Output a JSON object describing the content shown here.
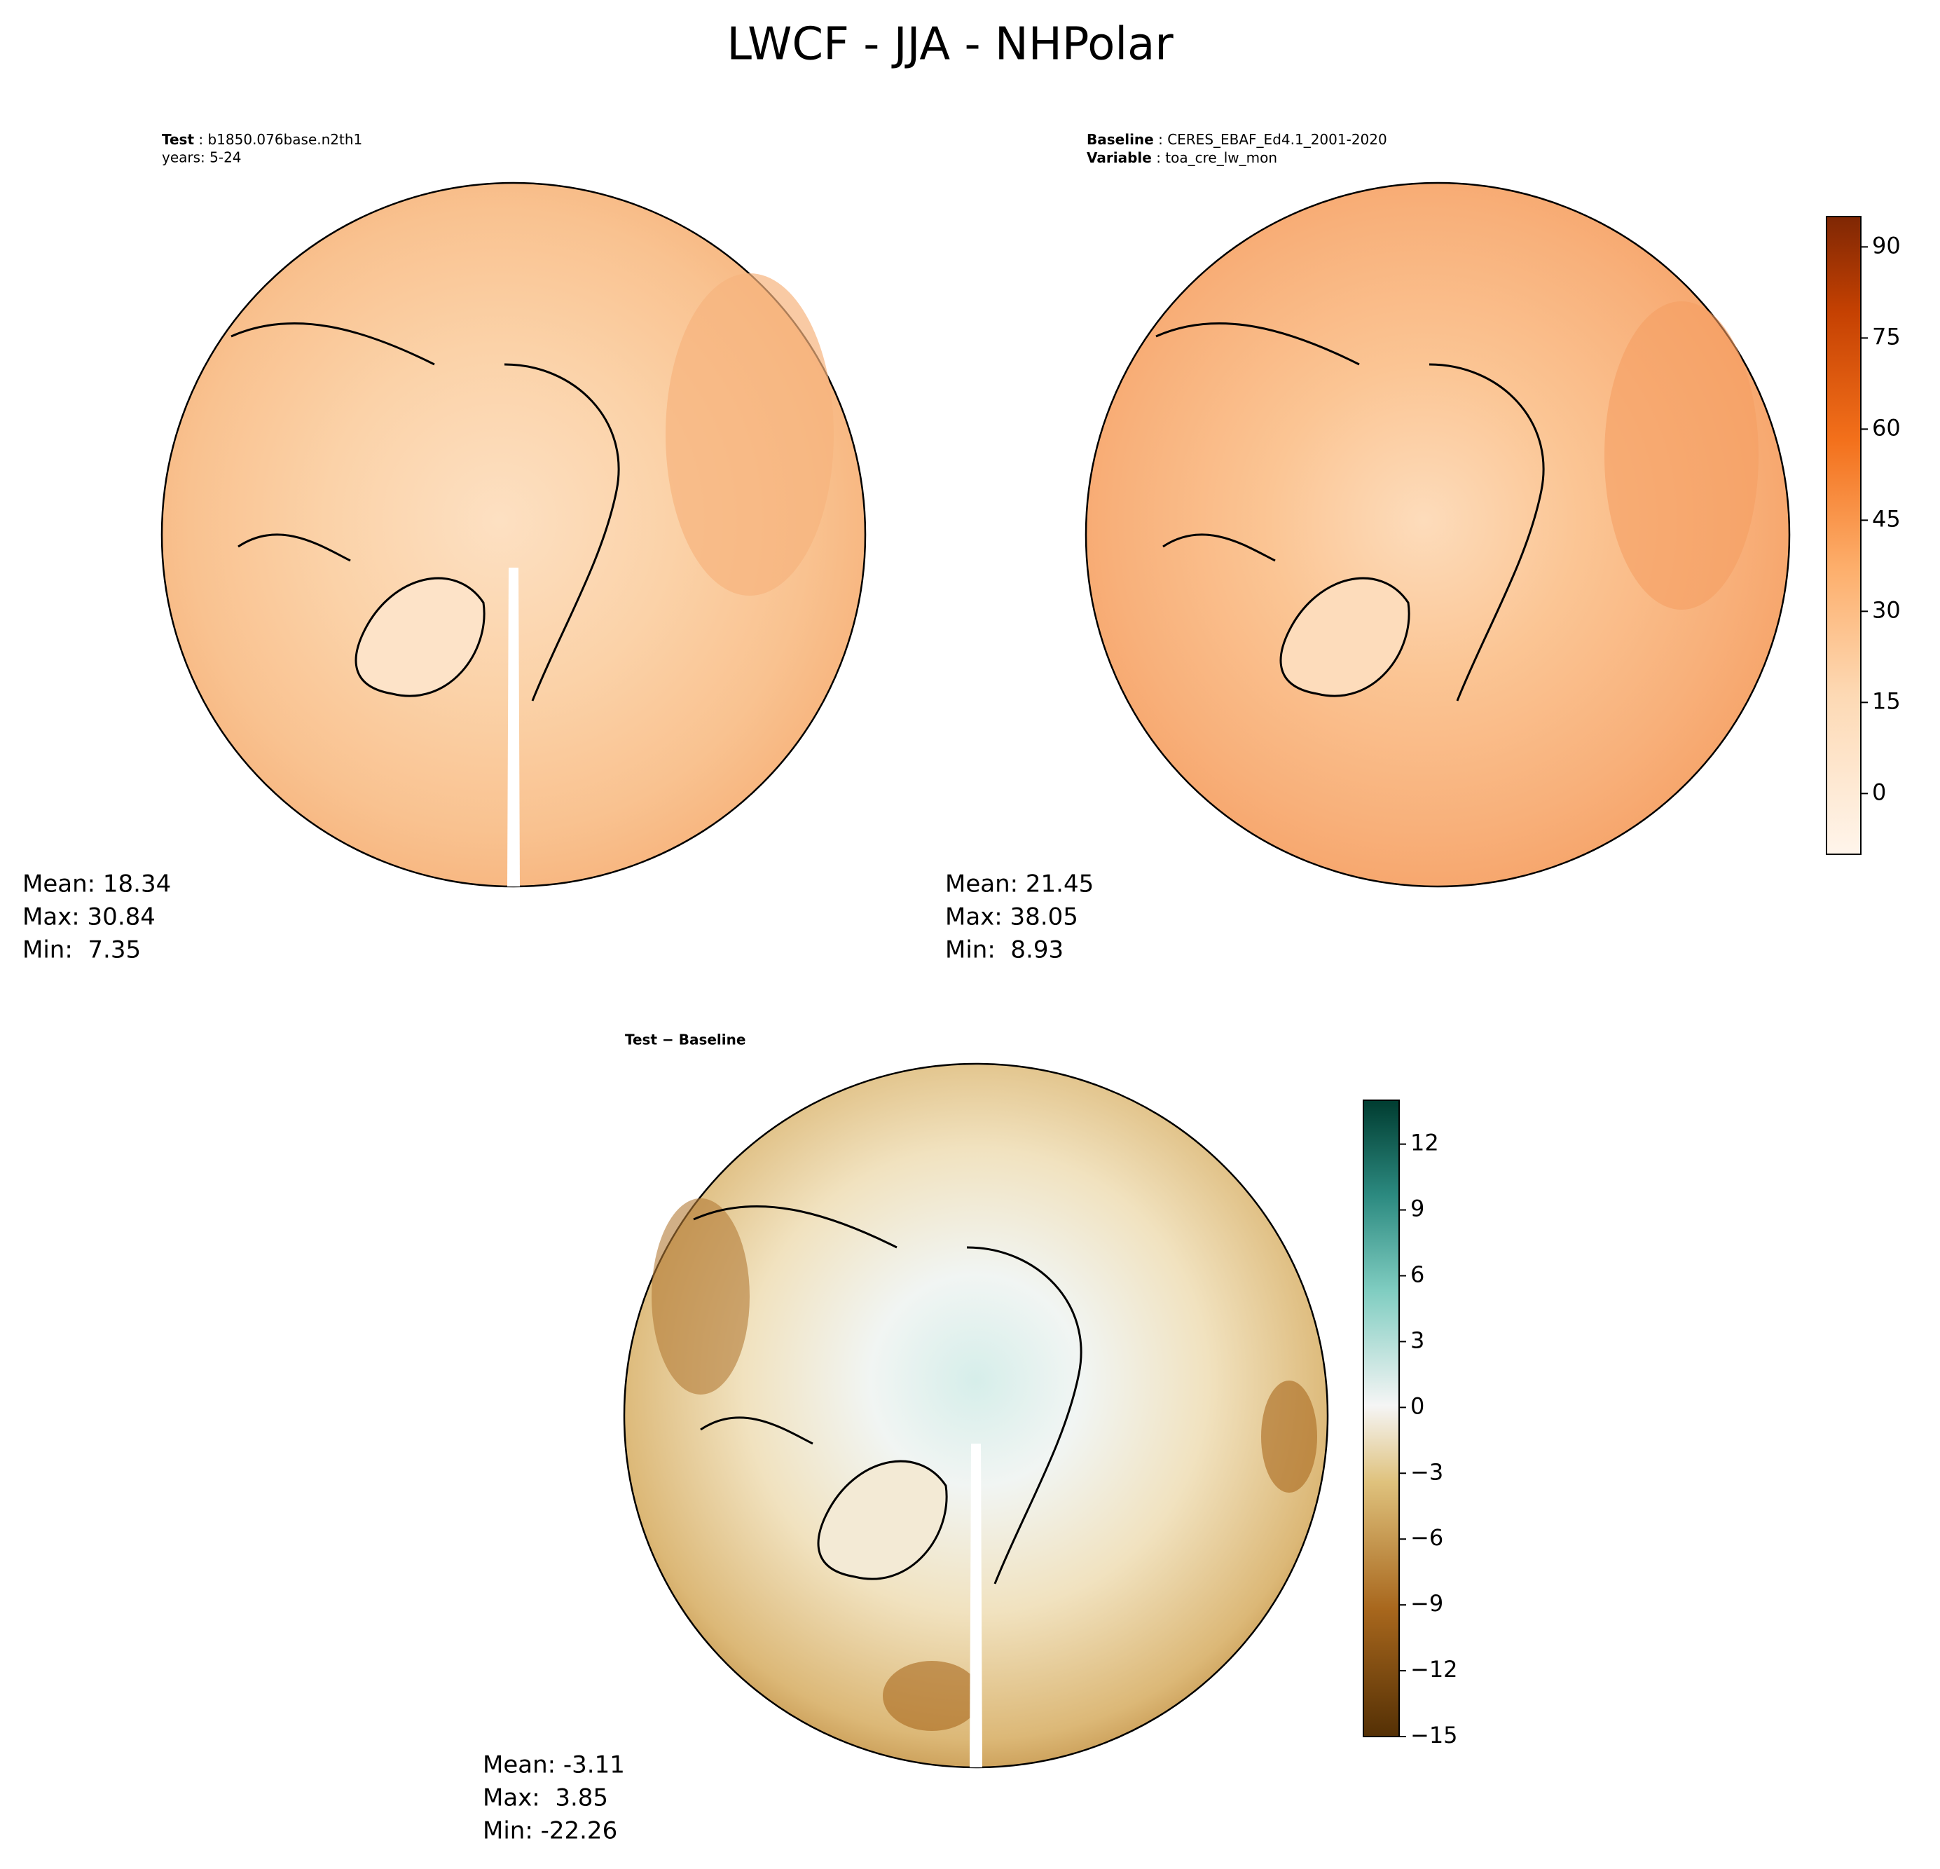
{
  "title": "LWCF - JJA - NHPolar",
  "panels": [
    {
      "header": [
        {
          "label": "Test",
          "value": "b1850.076base.n2th1"
        },
        {
          "text": "years: 5-24"
        }
      ],
      "stats": [
        "Mean: 18.34",
        "Max: 30.84",
        "Min:  7.35"
      ]
    },
    {
      "header": [
        {
          "label": "Baseline",
          "value": "CERES_EBAF_Ed4.1_2001-2020"
        },
        {
          "label": "Variable",
          "value": "toa_cre_lw_mon"
        }
      ],
      "stats": [
        "Mean: 21.45",
        "Max: 38.05",
        "Min:  8.93"
      ]
    },
    {
      "header": [
        {
          "text": "Test − Baseline"
        }
      ],
      "stats": [
        "Mean: -3.11",
        "Max:  3.85",
        "Min: -22.26"
      ]
    }
  ],
  "colorbars": [
    {
      "ylim": [
        -10,
        95
      ],
      "yticks": [
        0,
        15,
        30,
        45,
        60,
        75,
        90
      ]
    },
    {
      "ylim": [
        -15,
        14
      ],
      "yticks": [
        {
          "value": -15,
          "label": "−15"
        },
        {
          "value": -12,
          "label": "−12"
        },
        {
          "value": -9,
          "label": "−9"
        },
        {
          "value": -6,
          "label": "−6"
        },
        {
          "value": -3,
          "label": "−3"
        },
        0,
        3,
        6,
        9,
        12
      ]
    }
  ]
}
